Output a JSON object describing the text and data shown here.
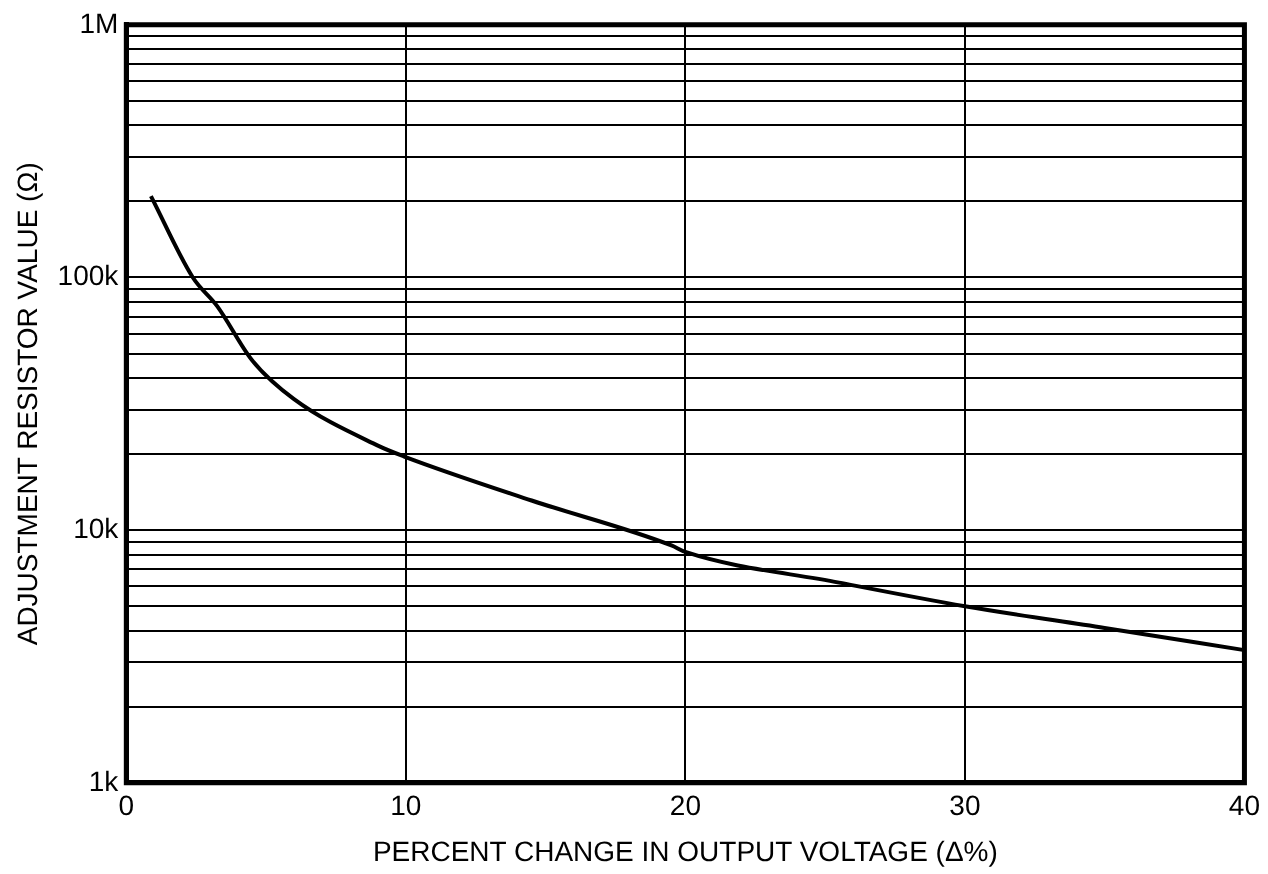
{
  "chart_data": {
    "type": "line",
    "xlabel": "PERCENT CHANGE IN OUTPUT VOLTAGE (Δ%)",
    "ylabel": "ADJUSTMENT RESISTOR VALUE (Ω)",
    "x": [
      0.88,
      2.38,
      3.25,
      4.5,
      6.0,
      9.0,
      9.92,
      14.5,
      19.5,
      20,
      25.5,
      30,
      35,
      40
    ],
    "series": [
      {
        "color": "#000000",
        "values": [
          210000,
          100000,
          77000,
          47000,
          33000,
          21600,
          19600,
          13100,
          8700,
          8200,
          6200,
          5000,
          4100,
          3350
        ]
      }
    ],
    "xlim": [
      0,
      40
    ],
    "xticks": [
      0,
      10,
      20,
      30,
      40
    ],
    "ylim": [
      1000,
      1000000
    ],
    "yticks": [
      {
        "value": 1000,
        "label": "1k"
      },
      {
        "value": 2000,
        "label": null
      },
      {
        "value": 3000,
        "label": null
      },
      {
        "value": 4000,
        "label": null
      },
      {
        "value": 5000,
        "label": null
      },
      {
        "value": 6000,
        "label": null
      },
      {
        "value": 7000,
        "label": null
      },
      {
        "value": 8000,
        "label": null
      },
      {
        "value": 9000,
        "label": null
      },
      {
        "value": 10000,
        "label": "10k"
      },
      {
        "value": 20000,
        "label": null
      },
      {
        "value": 30000,
        "label": null
      },
      {
        "value": 40000,
        "label": null
      },
      {
        "value": 50000,
        "label": null
      },
      {
        "value": 60000,
        "label": null
      },
      {
        "value": 70000,
        "label": null
      },
      {
        "value": 80000,
        "label": null
      },
      {
        "value": 90000,
        "label": null
      },
      {
        "value": 100000,
        "label": "100k"
      },
      {
        "value": 200000,
        "label": null
      },
      {
        "value": 300000,
        "label": null
      },
      {
        "value": 400000,
        "label": null
      },
      {
        "value": 500000,
        "label": null
      },
      {
        "value": 600000,
        "label": null
      },
      {
        "value": 700000,
        "label": null
      },
      {
        "value": 800000,
        "label": null
      },
      {
        "value": 900000,
        "label": null
      },
      {
        "value": 1000000,
        "label": "1M"
      }
    ],
    "log": "y",
    "grid": true,
    "legend": false,
    "marker": "none",
    "line_style": "solid"
  }
}
